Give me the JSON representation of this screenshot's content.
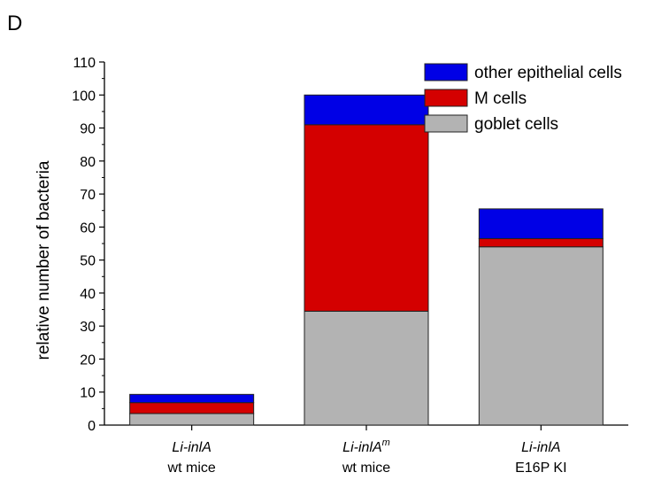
{
  "panel_label": "D",
  "chart_data": {
    "type": "bar",
    "stacked": true,
    "categories": [
      {
        "name": "Li-inlA",
        "superscript": "",
        "sub": "wt mice"
      },
      {
        "name": "Li-inlA",
        "superscript": "m",
        "sub": "wt mice"
      },
      {
        "name": "Li-inlA",
        "superscript": "",
        "sub": "E16P KI"
      }
    ],
    "series": [
      {
        "name": "goblet cells",
        "color": "#b3b3b3",
        "values": [
          3.5,
          34.5,
          54
        ]
      },
      {
        "name": "M cells",
        "color": "#d40000",
        "values": [
          3.3,
          56.5,
          2.5
        ]
      },
      {
        "name": "other epithelial cells",
        "color": "#0000e6",
        "values": [
          2.5,
          9,
          9
        ]
      }
    ],
    "legend_order": [
      "other epithelial cells",
      "M cells",
      "goblet cells"
    ],
    "xlabel": "",
    "ylabel": "relative number of bacteria",
    "ylim": [
      0,
      110
    ],
    "yticks": [
      0,
      10,
      20,
      30,
      40,
      50,
      60,
      70,
      80,
      90,
      100,
      110
    ],
    "legend_position": "top-right",
    "grid": false
  }
}
